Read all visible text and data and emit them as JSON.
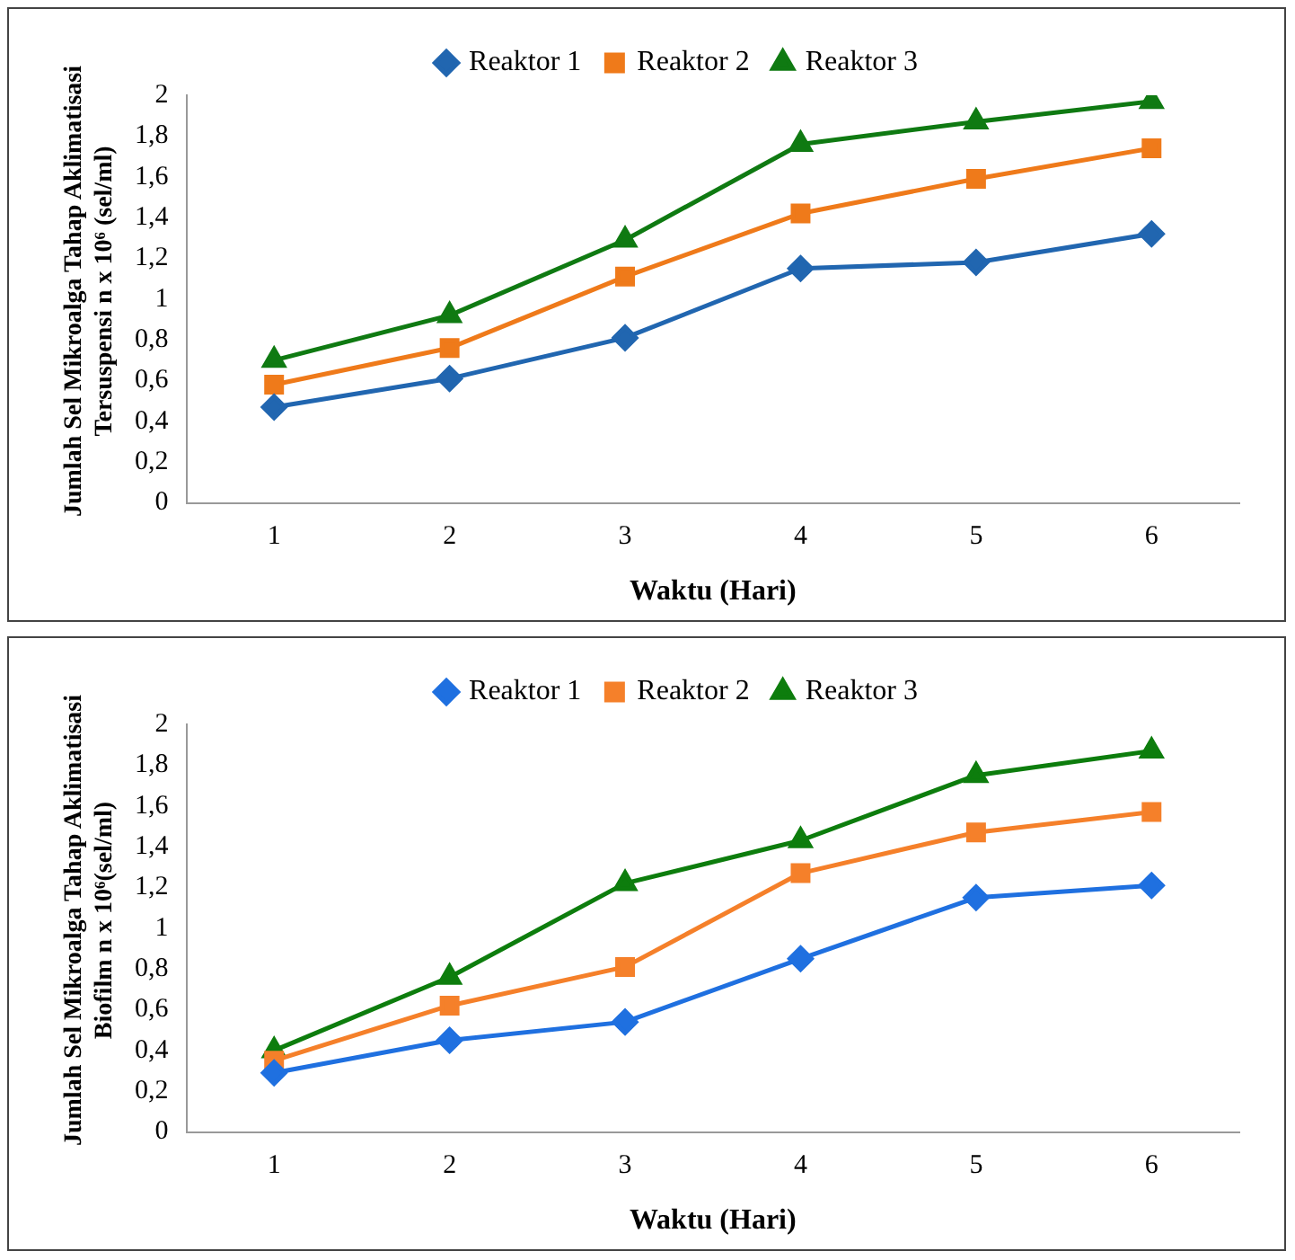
{
  "chart_data": [
    {
      "type": "line",
      "xlabel": "Waktu (Hari)",
      "ylabel": "Jumlah Sel Mikroalga Tahap Aklimatisasi Tersuspensi n x 10⁶ (sel/ml)",
      "categories": [
        "1",
        "2",
        "3",
        "4",
        "5",
        "6"
      ],
      "legend": "top",
      "grid": false,
      "ylim": [
        0,
        2
      ],
      "yticks": [
        0,
        {
          "value": 0.2,
          "label": "0,2"
        },
        {
          "value": 0.4,
          "label": "0,4"
        },
        {
          "value": 0.6,
          "label": "0,6"
        },
        {
          "value": 0.8,
          "label": "0,8"
        },
        1,
        {
          "value": 1.2,
          "label": "1,2"
        },
        {
          "value": 1.4,
          "label": "1,4"
        },
        {
          "value": 1.6,
          "label": "1,6"
        },
        {
          "value": 1.8,
          "label": "1,8"
        },
        2
      ],
      "series": [
        {
          "name": "Reaktor 1",
          "color": "#2166b0",
          "marker": "diamond",
          "values": [
            0.47,
            0.61,
            0.81,
            1.15,
            1.18,
            1.32
          ]
        },
        {
          "name": "Reaktor 2",
          "color": "#ef7a1a",
          "marker": "square",
          "values": [
            0.58,
            0.76,
            1.11,
            1.42,
            1.59,
            1.74
          ]
        },
        {
          "name": "Reaktor 3",
          "color": "#0f7a12",
          "marker": "triangle",
          "values": [
            0.7,
            0.92,
            1.29,
            1.76,
            1.87,
            1.97
          ]
        }
      ]
    },
    {
      "type": "line",
      "xlabel": "Waktu (Hari)",
      "ylabel": "Jumlah Sel Mikroalga Tahap Aklimatisasi Biofilm n x 10⁶(sel/ml)",
      "categories": [
        "1",
        "2",
        "3",
        "4",
        "5",
        "6"
      ],
      "legend": "top",
      "grid": false,
      "ylim": [
        0,
        2
      ],
      "yticks": [
        0,
        {
          "value": 0.2,
          "label": "0,2"
        },
        {
          "value": 0.4,
          "label": "0,4"
        },
        {
          "value": 0.6,
          "label": "0,6"
        },
        {
          "value": 0.8,
          "label": "0,8"
        },
        1,
        {
          "value": 1.2,
          "label": "1,2"
        },
        {
          "value": 1.4,
          "label": "1,4"
        },
        {
          "value": 1.6,
          "label": "1,6"
        },
        {
          "value": 1.8,
          "label": "1,8"
        },
        2
      ],
      "series": [
        {
          "name": "Reaktor 1",
          "color": "#1f70e0",
          "marker": "diamond",
          "values": [
            0.29,
            0.45,
            0.54,
            0.85,
            1.15,
            1.21
          ]
        },
        {
          "name": "Reaktor 2",
          "color": "#f5802a",
          "marker": "square",
          "values": [
            0.35,
            0.62,
            0.81,
            1.27,
            1.47,
            1.57
          ]
        },
        {
          "name": "Reaktor 3",
          "color": "#0d7d0d",
          "marker": "triangle",
          "values": [
            0.4,
            0.76,
            1.22,
            1.43,
            1.75,
            1.87
          ]
        }
      ]
    }
  ]
}
